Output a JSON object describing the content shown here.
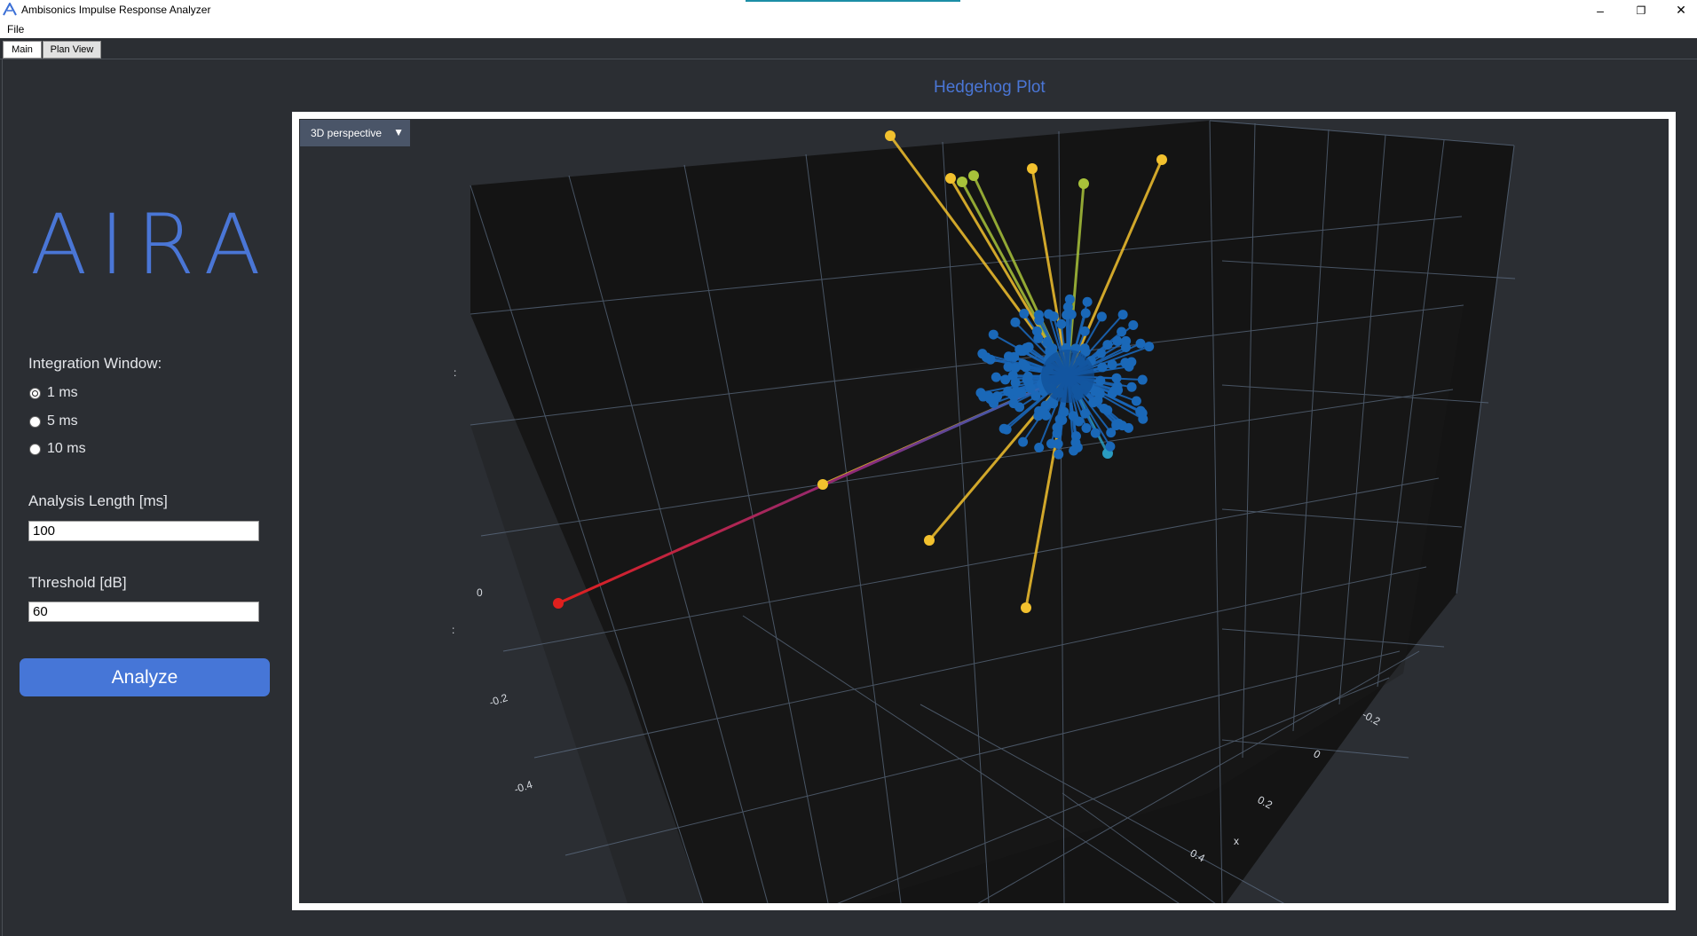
{
  "window": {
    "title": "Ambisonics Impulse Response Analyzer",
    "minimize": "–",
    "restore": "❐",
    "close": "✕",
    "icon": "aira-a-icon"
  },
  "menu": {
    "file": "File"
  },
  "tabs": [
    {
      "label": "Main",
      "active": true
    },
    {
      "label": "Plan View",
      "active": false
    }
  ],
  "sidebar": {
    "logo": "AIRA",
    "integration_window": {
      "label": "Integration Window:",
      "options": [
        "1 ms",
        "5 ms",
        "10 ms"
      ],
      "selected": "1 ms"
    },
    "analysis_length": {
      "label": "Analysis Length [ms]",
      "value": "100"
    },
    "threshold": {
      "label": "Threshold [dB]",
      "value": "60"
    },
    "analyze_button": "Analyze"
  },
  "plot": {
    "title": "Hedgehog Plot",
    "view_mode": "3D perspective",
    "axis_ticks": {
      "left_axis": [
        "0",
        "-0.2",
        "-0.4"
      ],
      "right_axis": [
        "-0.2",
        "0",
        "0.2",
        "0.4"
      ],
      "x_label": "x"
    },
    "colors": {
      "background": "#2b2e33",
      "panel": "#141414",
      "grid": "#6b7f99",
      "blue": "#1f6fc0",
      "yellow": "#f2c12e",
      "green": "#a8c23a",
      "red": "#e0201e",
      "title": "#4a76d6"
    }
  }
}
